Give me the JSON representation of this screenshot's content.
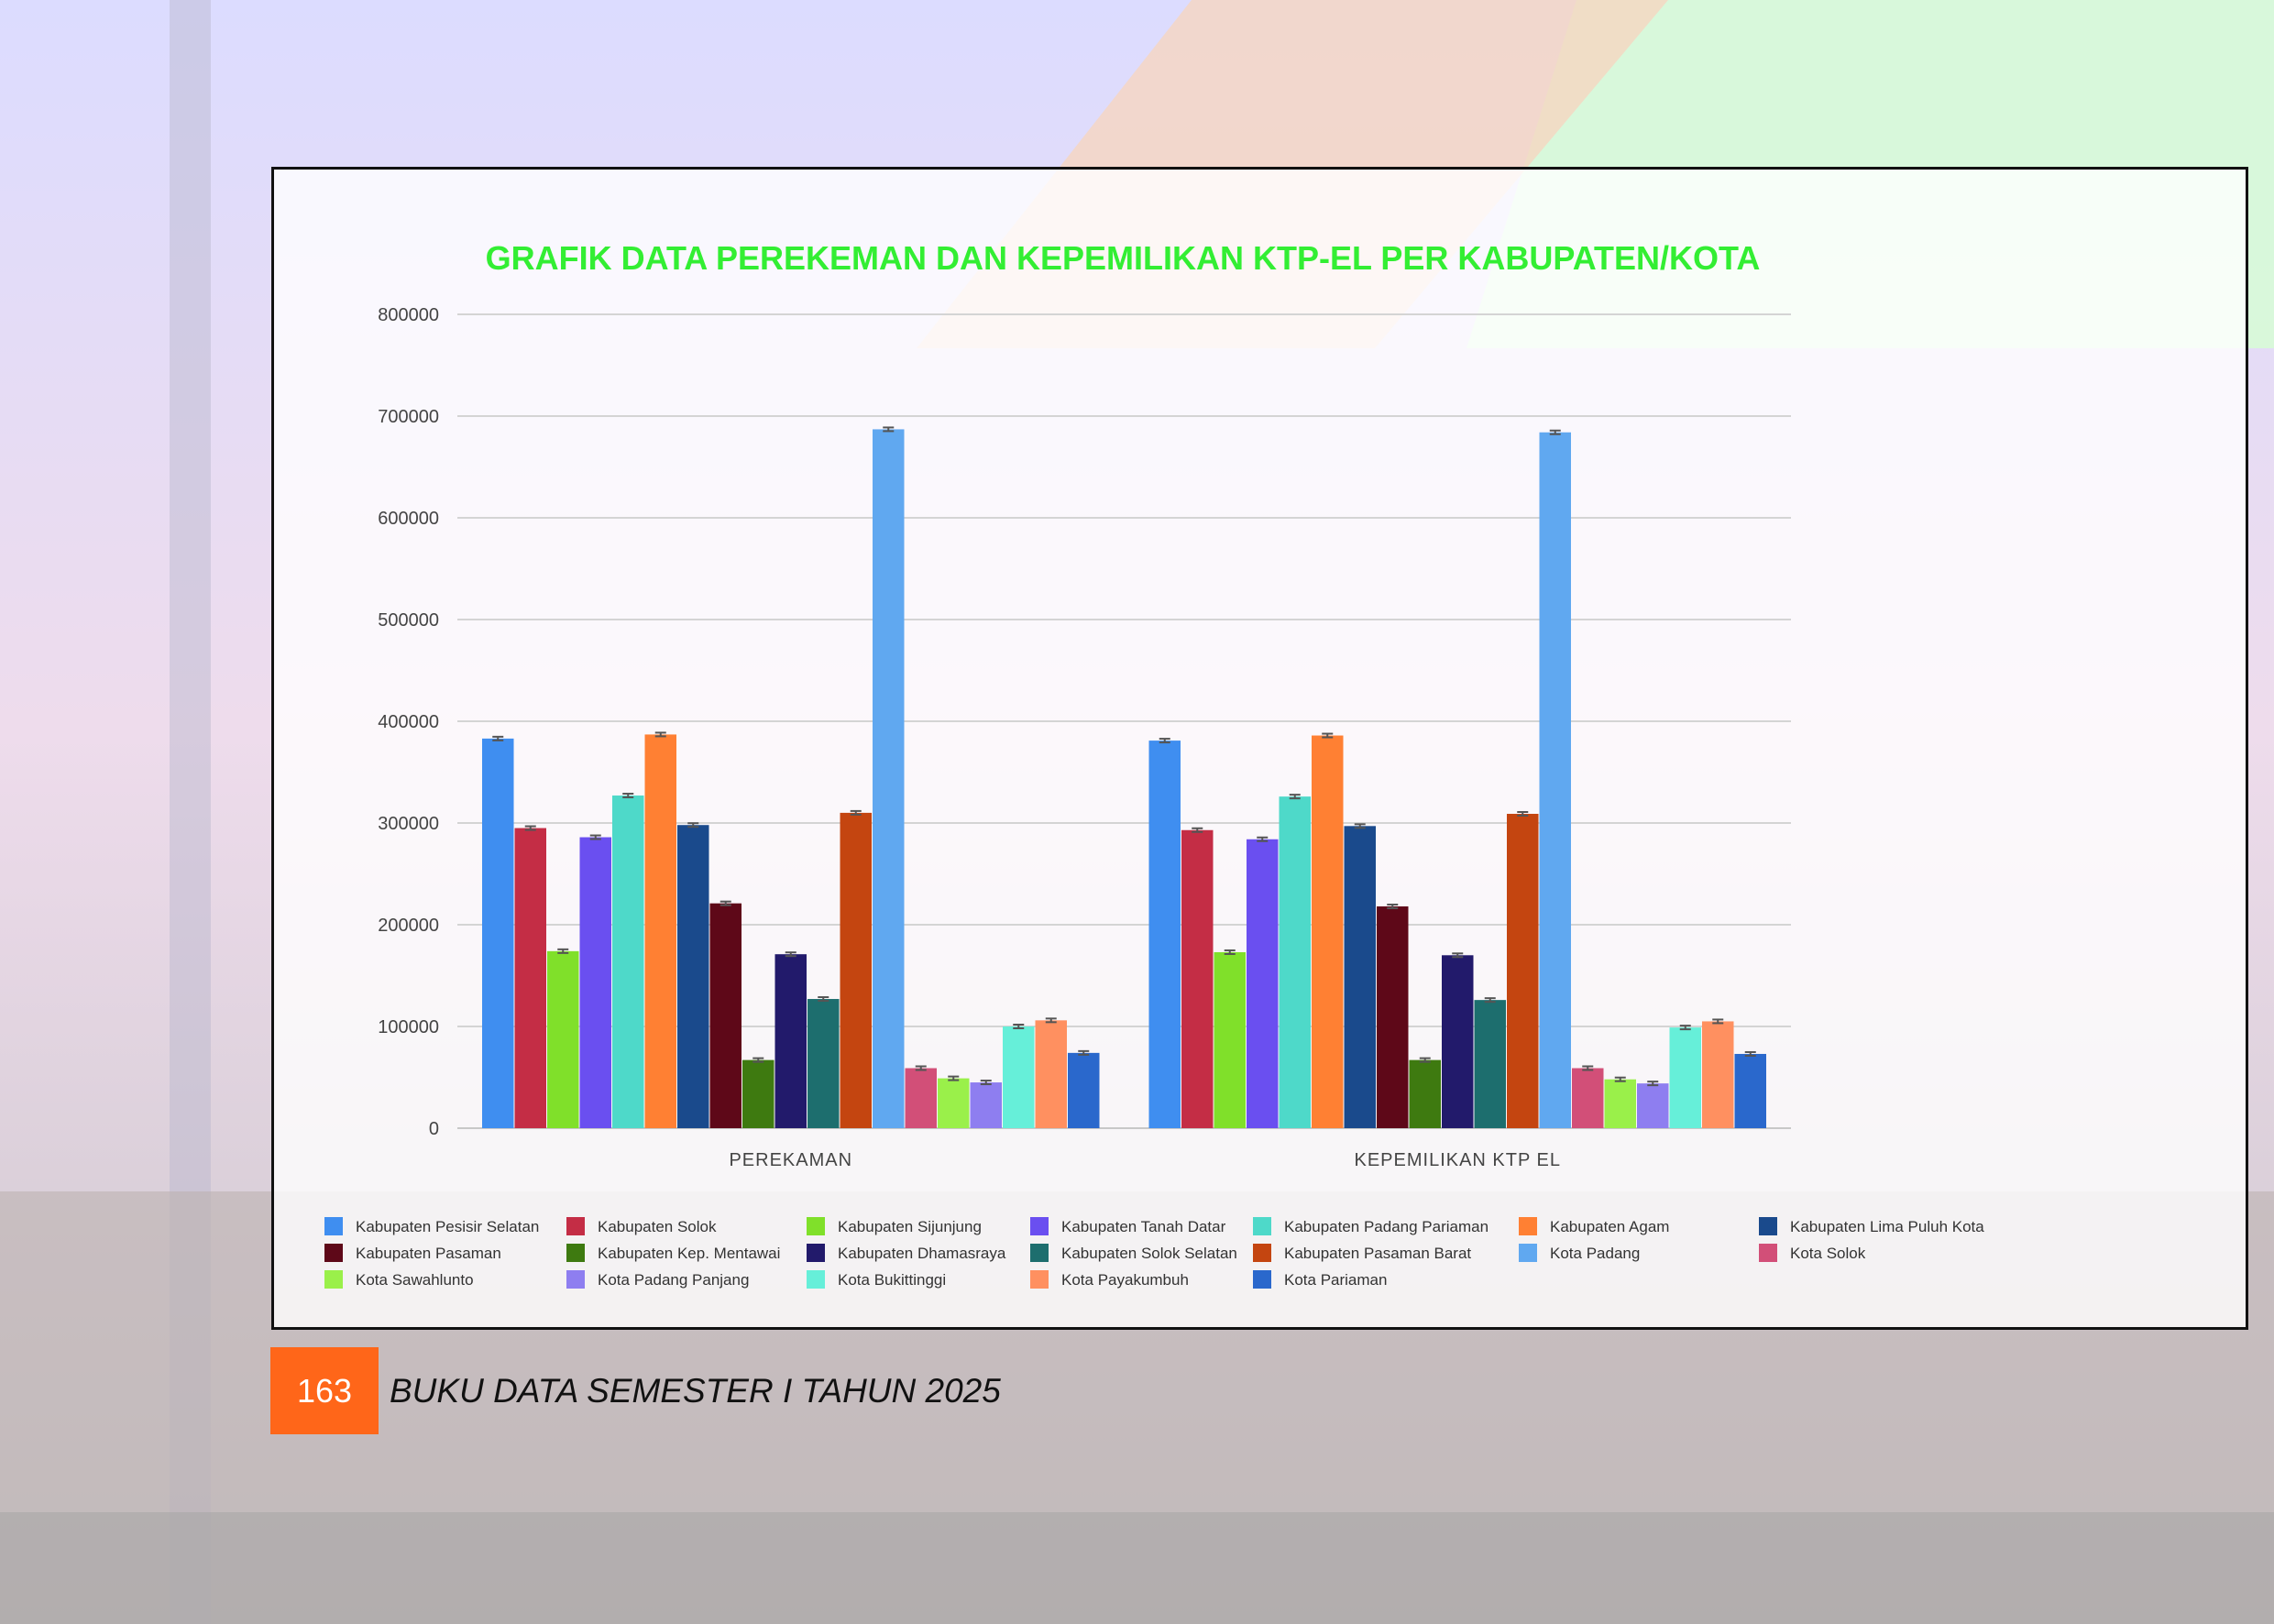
{
  "page": {
    "number": "163",
    "footer_title": "BUKU DATA SEMESTER I TAHUN 2025"
  },
  "colors": {
    "title": "#33ee33",
    "page_box": "#ff6619"
  },
  "chart_data": {
    "type": "bar",
    "title": "GRAFIK DATA PEREKEMAN DAN KEPEMILIKAN KTP-EL PER KABUPATEN/KOTA",
    "xlabel": "",
    "ylabel": "",
    "ylim": [
      0,
      800000
    ],
    "yticks": [
      "0",
      "100000",
      "200000",
      "300000",
      "400000",
      "500000",
      "600000",
      "700000",
      "800000"
    ],
    "grid": true,
    "legend_position": "bottom",
    "error_bars": true,
    "categories": [
      "PEREKAMAN",
      "KEPEMILIKAN KTP EL"
    ],
    "series": [
      {
        "name": "Kabupaten Pesisir Selatan",
        "color": "#3f8ef0",
        "values": [
          383000,
          381000
        ]
      },
      {
        "name": "Kabupaten Solok",
        "color": "#c42d45",
        "values": [
          295000,
          293000
        ]
      },
      {
        "name": "Kabupaten Sijunjung",
        "color": "#80e02a",
        "values": [
          174000,
          173000
        ]
      },
      {
        "name": "Kabupaten Tanah Datar",
        "color": "#6a4ff0",
        "values": [
          286000,
          284000
        ]
      },
      {
        "name": "Kabupaten Padang Pariaman",
        "color": "#4ed9c9",
        "values": [
          327000,
          326000
        ]
      },
      {
        "name": "Kabupaten Agam",
        "color": "#ff8033",
        "values": [
          387000,
          386000
        ]
      },
      {
        "name": "Kabupaten Lima Puluh Kota",
        "color": "#1a4a8c",
        "values": [
          298000,
          297000
        ]
      },
      {
        "name": "Kabupaten Pasaman",
        "color": "#5e0818",
        "values": [
          221000,
          218000
        ]
      },
      {
        "name": "Kabupaten Kep. Mentawai",
        "color": "#3e7a10",
        "values": [
          67000,
          67000
        ]
      },
      {
        "name": "Kabupaten Dhamasraya",
        "color": "#221a6b",
        "values": [
          171000,
          170000
        ]
      },
      {
        "name": "Kabupaten Solok Selatan",
        "color": "#1d6e6e",
        "values": [
          127000,
          126000
        ]
      },
      {
        "name": "Kabupaten Pasaman Barat",
        "color": "#c44510",
        "values": [
          310000,
          309000
        ]
      },
      {
        "name": "Kota Padang",
        "color": "#60a8f0",
        "values": [
          687000,
          684000
        ]
      },
      {
        "name": "Kota Solok",
        "color": "#d24f78",
        "values": [
          59000,
          59000
        ]
      },
      {
        "name": "Kota Sawahlunto",
        "color": "#9af04a",
        "values": [
          49000,
          48000
        ]
      },
      {
        "name": "Kota Padang Panjang",
        "color": "#8e7ef0",
        "values": [
          45000,
          44000
        ]
      },
      {
        "name": "Kota Bukittinggi",
        "color": "#66efd9",
        "values": [
          100000,
          99000
        ]
      },
      {
        "name": "Kota Payakumbuh",
        "color": "#ff9060",
        "values": [
          106000,
          105000
        ]
      },
      {
        "name": "Kota Pariaman",
        "color": "#2a68cc",
        "values": [
          74000,
          73000
        ]
      }
    ]
  }
}
